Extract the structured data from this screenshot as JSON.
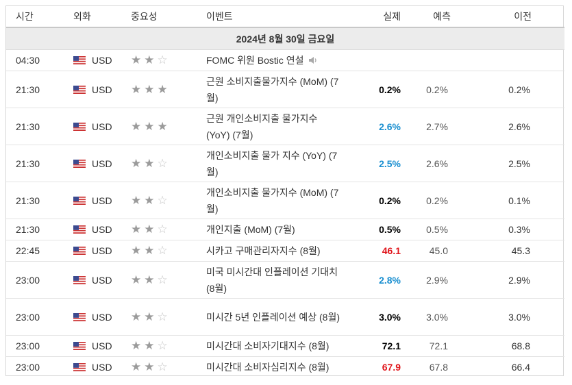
{
  "headers": {
    "time": "시간",
    "currency": "외화",
    "importance": "중요성",
    "event": "이벤트",
    "actual": "실제",
    "forecast": "예측",
    "previous": "이전"
  },
  "date_label": "2024년 8월 30일 금요일",
  "colors": {
    "better": "#1a8fd0",
    "worse": "#e0151b",
    "neutral": "#000000"
  },
  "rows": [
    {
      "time": "04:30",
      "currency": "USD",
      "stars": 2,
      "event": "FOMC 위원 Bostic 연설",
      "actual": "",
      "actual_color": "black",
      "forecast": "",
      "previous": "",
      "speech": true
    },
    {
      "time": "21:30",
      "currency": "USD",
      "stars": 3,
      "event": "근원 소비지출물가지수 (MoM) (7월)",
      "actual": "0.2%",
      "actual_color": "black",
      "forecast": "0.2%",
      "previous": "0.2%"
    },
    {
      "time": "21:30",
      "currency": "USD",
      "stars": 3,
      "event": "근원 개인소비지출 물가지수 (YoY) (7월)",
      "actual": "2.6%",
      "actual_color": "blue",
      "forecast": "2.7%",
      "previous": "2.6%"
    },
    {
      "time": "21:30",
      "currency": "USD",
      "stars": 2,
      "event": "개인소비지출 물가 지수 (YoY) (7월)",
      "actual": "2.5%",
      "actual_color": "blue",
      "forecast": "2.6%",
      "previous": "2.5%"
    },
    {
      "time": "21:30",
      "currency": "USD",
      "stars": 2,
      "event": "개인소비지출 물가지수 (MoM) (7월)",
      "actual": "0.2%",
      "actual_color": "black",
      "forecast": "0.2%",
      "previous": "0.1%"
    },
    {
      "time": "21:30",
      "currency": "USD",
      "stars": 2,
      "event": "개인지출 (MoM) (7월)",
      "actual": "0.5%",
      "actual_color": "black",
      "forecast": "0.5%",
      "previous": "0.3%"
    },
    {
      "time": "22:45",
      "currency": "USD",
      "stars": 2,
      "event": "시카고 구매관리자지수 (8월)",
      "actual": "46.1",
      "actual_color": "red",
      "forecast": "45.0",
      "previous": "45.3"
    },
    {
      "time": "23:00",
      "currency": "USD",
      "stars": 2,
      "event": "미국 미시간대 인플레이션 기대치 (8월)",
      "actual": "2.8%",
      "actual_color": "blue",
      "forecast": "2.9%",
      "previous": "2.9%"
    },
    {
      "time": "23:00",
      "currency": "USD",
      "stars": 2,
      "event": "미시간 5년 인플레이션 예상 (8월)",
      "actual": "3.0%",
      "actual_color": "black",
      "forecast": "3.0%",
      "previous": "3.0%"
    },
    {
      "time": "23:00",
      "currency": "USD",
      "stars": 2,
      "event": "미시간대 소비자기대지수 (8월)",
      "actual": "72.1",
      "actual_color": "black",
      "forecast": "72.1",
      "previous": "68.8"
    },
    {
      "time": "23:00",
      "currency": "USD",
      "stars": 2,
      "event": "미시간대 소비자심리지수 (8월)",
      "actual": "67.9",
      "actual_color": "red",
      "forecast": "67.8",
      "previous": "66.4"
    }
  ]
}
